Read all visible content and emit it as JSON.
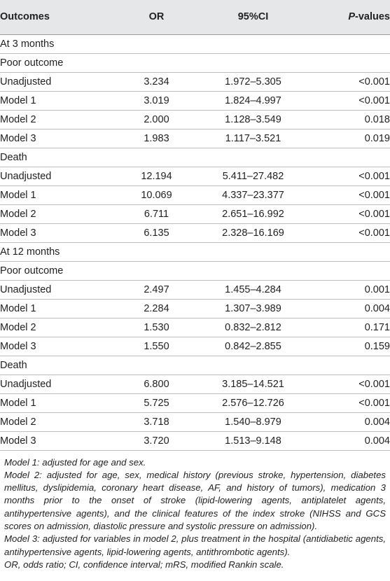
{
  "table": {
    "headers": {
      "outcomes": "Outcomes",
      "or": "OR",
      "ci": "95%CI",
      "p_italic": "P",
      "p_rest": "-values"
    },
    "rows": [
      {
        "type": "section",
        "label": "At 3 months"
      },
      {
        "type": "section",
        "label": "Poor outcome"
      },
      {
        "type": "data",
        "indent": true,
        "label": "Unadjusted",
        "or": "3.234",
        "ci": "1.972–5.305",
        "p": "<0.001"
      },
      {
        "type": "data",
        "indent": true,
        "label": "Model 1",
        "or": "3.019",
        "ci": "1.824–4.997",
        "p": "<0.001"
      },
      {
        "type": "data",
        "indent": true,
        "label": "Model 2",
        "or": "2.000",
        "ci": "1.128–3.549",
        "p": "0.018"
      },
      {
        "type": "data",
        "indent": true,
        "label": "Model 3",
        "or": "1.983",
        "ci": "1.117–3.521",
        "p": "0.019"
      },
      {
        "type": "section",
        "label": "Death"
      },
      {
        "type": "data",
        "indent": false,
        "label": "Unadjusted",
        "or": "12.194",
        "ci": "5.411–27.482",
        "p": "<0.001"
      },
      {
        "type": "data",
        "indent": false,
        "label": "Model 1",
        "or": "10.069",
        "ci": "4.337–23.377",
        "p": "<0.001"
      },
      {
        "type": "data",
        "indent": false,
        "label": "Model 2",
        "or": "6.711",
        "ci": "2.651–16.992",
        "p": "<0.001"
      },
      {
        "type": "data",
        "indent": false,
        "label": "Model 3",
        "or": "6.135",
        "ci": "2.328–16.169",
        "p": "<0.001"
      },
      {
        "type": "section",
        "label": "At 12 months"
      },
      {
        "type": "section",
        "label": "Poor outcome"
      },
      {
        "type": "data",
        "indent": true,
        "label": "Unadjusted",
        "or": "2.497",
        "ci": "1.455–4.284",
        "p": "0.001"
      },
      {
        "type": "data",
        "indent": true,
        "label": "Model 1",
        "or": "2.284",
        "ci": "1.307–3.989",
        "p": "0.004"
      },
      {
        "type": "data",
        "indent": true,
        "label": "Model 2",
        "or": "1.530",
        "ci": "0.832–2.812",
        "p": "0.171"
      },
      {
        "type": "data",
        "indent": true,
        "label": "Model 3",
        "or": "1.550",
        "ci": "0.842–2.855",
        "p": "0.159"
      },
      {
        "type": "section",
        "label": "Death"
      },
      {
        "type": "data",
        "indent": true,
        "label": "Unadjusted",
        "or": "6.800",
        "ci": "3.185–14.521",
        "p": "<0.001"
      },
      {
        "type": "data",
        "indent": true,
        "label": "Model 1",
        "or": "5.725",
        "ci": "2.576–12.726",
        "p": "<0.001"
      },
      {
        "type": "data",
        "indent": true,
        "label": "Model 2",
        "or": "3.718",
        "ci": "1.540–8.979",
        "p": "0.004"
      },
      {
        "type": "data",
        "indent": true,
        "label": "Model 3",
        "or": "3.720",
        "ci": "1.513–9.148",
        "p": "0.004"
      }
    ]
  },
  "footnotes": [
    "Model 1: adjusted for age and sex.",
    "Model 2: adjusted for age, sex, medical history (previous stroke, hypertension, diabetes mellitus, dyslipidemia, coronary heart disease, AF, and history of tumors), medication 3 months prior to the onset of stroke (lipid-lowering agents, antiplatelet agents, antihypertensive agents), and the clinical features of the index stroke (NIHSS and GCS scores on admission, diastolic pressure and systolic pressure on admission).",
    "Model 3: adjusted for variables in model 2, plus treatment in the hospital (antidiabetic agents, antihypertensive agents, lipid-lowering agents, antithrombotic agents).",
    "OR, odds ratio; CI, confidence interval; mRS, modified Rankin scale."
  ],
  "colors": {
    "header_bg": "#e6e7e8",
    "text": "#222222",
    "rule": "#bfbfbf"
  }
}
